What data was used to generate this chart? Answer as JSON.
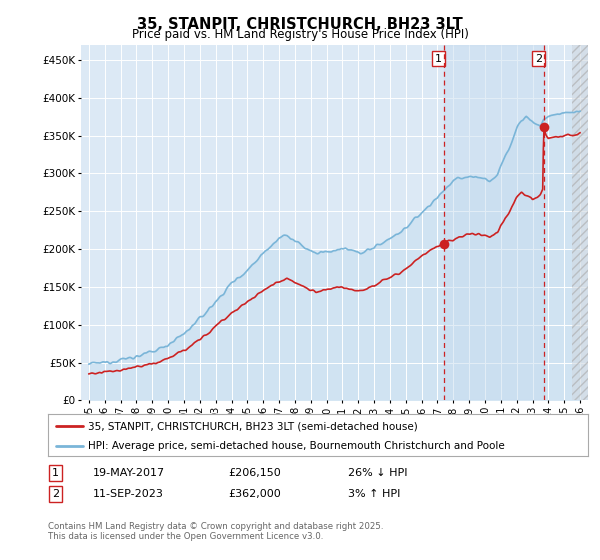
{
  "title": "35, STANPIT, CHRISTCHURCH, BH23 3LT",
  "subtitle": "Price paid vs. HM Land Registry's House Price Index (HPI)",
  "ylim": [
    0,
    470000
  ],
  "yticks": [
    0,
    50000,
    100000,
    150000,
    200000,
    250000,
    300000,
    350000,
    400000,
    450000
  ],
  "ytick_labels": [
    "£0",
    "£50K",
    "£100K",
    "£150K",
    "£200K",
    "£250K",
    "£300K",
    "£350K",
    "£400K",
    "£450K"
  ],
  "xlim_start": 1994.5,
  "xlim_end": 2026.5,
  "hpi_color": "#7ab5d8",
  "hpi_fill_color": "#c8dff0",
  "price_color": "#cc2222",
  "vline_color": "#cc2222",
  "background_color": "#dce9f5",
  "plot_bg_color": "#dce9f5",
  "legend_label_price": "35, STANPIT, CHRISTCHURCH, BH23 3LT (semi-detached house)",
  "legend_label_hpi": "HPI: Average price, semi-detached house, Bournemouth Christchurch and Poole",
  "transaction1_year": 2017.38,
  "transaction1_price": 206150,
  "transaction2_year": 2023.7,
  "transaction2_price": 362000,
  "transaction1_date": "19-MAY-2017",
  "transaction2_date": "11-SEP-2023",
  "transaction1_note_price": "£206,150",
  "transaction1_note_hpi": "26% ↓ HPI",
  "transaction2_note_price": "£362,000",
  "transaction2_note_hpi": "3% ↑ HPI",
  "grid_color": "#ffffff",
  "footnote": "Contains HM Land Registry data © Crown copyright and database right 2025.\nThis data is licensed under the Open Government Licence v3.0.",
  "hatch_start": 2025.5,
  "hatch_end": 2026.5
}
